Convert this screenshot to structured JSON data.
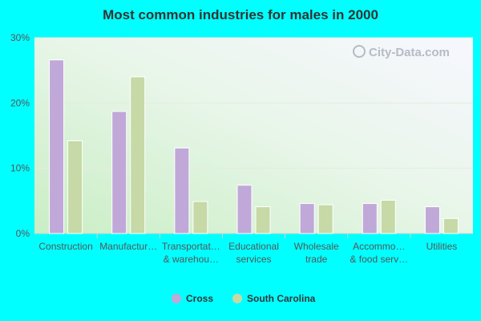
{
  "chart_data": {
    "type": "bar",
    "title": "Most common industries for males in 2000",
    "xlabel": "",
    "ylabel": "",
    "ylim": [
      0,
      30
    ],
    "yticks": [
      "0%",
      "10%",
      "20%",
      "30%"
    ],
    "ytick_values": [
      0,
      10,
      20,
      30
    ],
    "categories": [
      [
        "Construction"
      ],
      [
        "Manufactur…"
      ],
      [
        "Transportat…",
        "& warehou…"
      ],
      [
        "Educational",
        "services"
      ],
      [
        "Wholesale",
        "trade"
      ],
      [
        "Accommo…",
        "& food serv…"
      ],
      [
        "Utilities"
      ]
    ],
    "series": [
      {
        "name": "Cross",
        "color": "#c0a8d8",
        "values": [
          26.6,
          18.7,
          13.1,
          7.4,
          4.6,
          4.6,
          4.1
        ]
      },
      {
        "name": "South Carolina",
        "color": "#c6d9a6",
        "values": [
          14.2,
          24.0,
          4.9,
          4.1,
          4.4,
          5.1,
          2.3
        ]
      }
    ],
    "grid": true,
    "legend": "bottom",
    "watermark": "City-Data.com"
  }
}
